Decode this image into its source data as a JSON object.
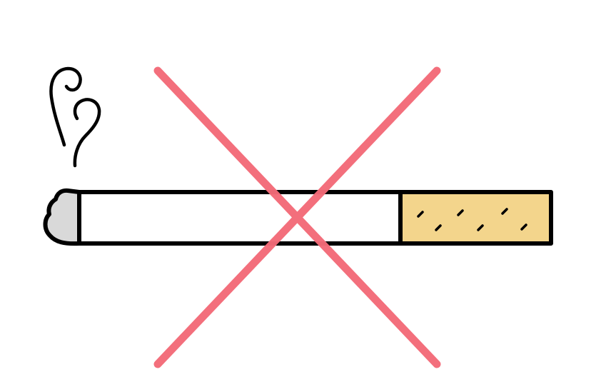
{
  "illustration": {
    "icons": [
      "smoke-icon",
      "cigarette-icon",
      "cross-icon"
    ],
    "colors": {
      "background": "#ffffff",
      "outline": "#000000",
      "paper": "#ffffff",
      "ash": "#d9d9d9",
      "filter": "#f3d58c",
      "cross": "#f36b78"
    }
  }
}
